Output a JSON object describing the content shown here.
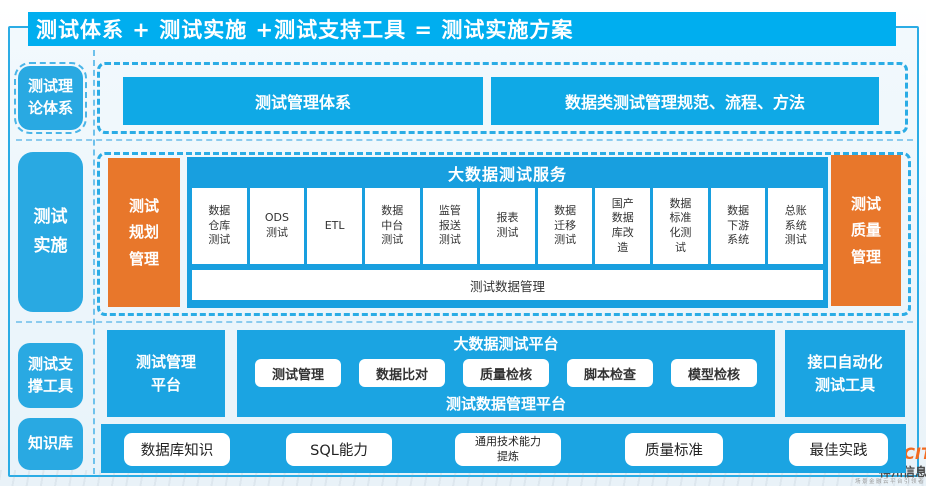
{
  "header": {
    "title": "测试体系 + 测试实施 +测试支持工具 = 测试实施方案"
  },
  "sidebar": {
    "items": [
      {
        "label": "测试理\n论体系"
      },
      {
        "label": "测试\n实施"
      },
      {
        "label": "测试支\n撑工具"
      },
      {
        "label": "知识库"
      }
    ]
  },
  "theory_row": {
    "box1": "测试管理体系",
    "box2": "数据类测试管理规范、流程、方法"
  },
  "implementation_row": {
    "planning": "测试\n规划\n管理",
    "quality": "测试\n质量\n管理",
    "services": {
      "title": "大数据测试服务",
      "cells": [
        "数据\n仓库\n测试",
        "ODS\n测试",
        "ETL",
        "数据\n中台\n测试",
        "监管\n报送\n测试",
        "报表\n测试",
        "数据\n迁移\n测试",
        "国产\n数据\n库改\n造",
        "数据\n标准\n化测\n试",
        "数据\n下游\n系统",
        "总账\n系统\n测试"
      ],
      "footer": "测试数据管理"
    }
  },
  "tools_row": {
    "left": "测试管理\n平台",
    "platform": {
      "title": "大数据测试平台",
      "buttons": [
        "测试管理",
        "数据比对",
        "质量检核",
        "脚本检查",
        "模型检核"
      ],
      "footer": "测试数据管理平台"
    },
    "right": "接口自动化\n测试工具"
  },
  "knowledge_row": {
    "buttons": [
      "数据库知识",
      "SQL能力",
      "通用技术能力\n提炼",
      "质量标准",
      "最佳实践"
    ]
  },
  "logo": {
    "latin": "DCITS",
    "cn": "神州信息",
    "slogan": "场景金融云平台引领者"
  },
  "colors": {
    "header_cyan": "#00aeef",
    "box_blue": "#1ba4e2",
    "container_blue": "#189fdf",
    "sidebar_blue": "#29a9e2",
    "orange": "#e8772b",
    "dashed_border": "#2bace5"
  }
}
